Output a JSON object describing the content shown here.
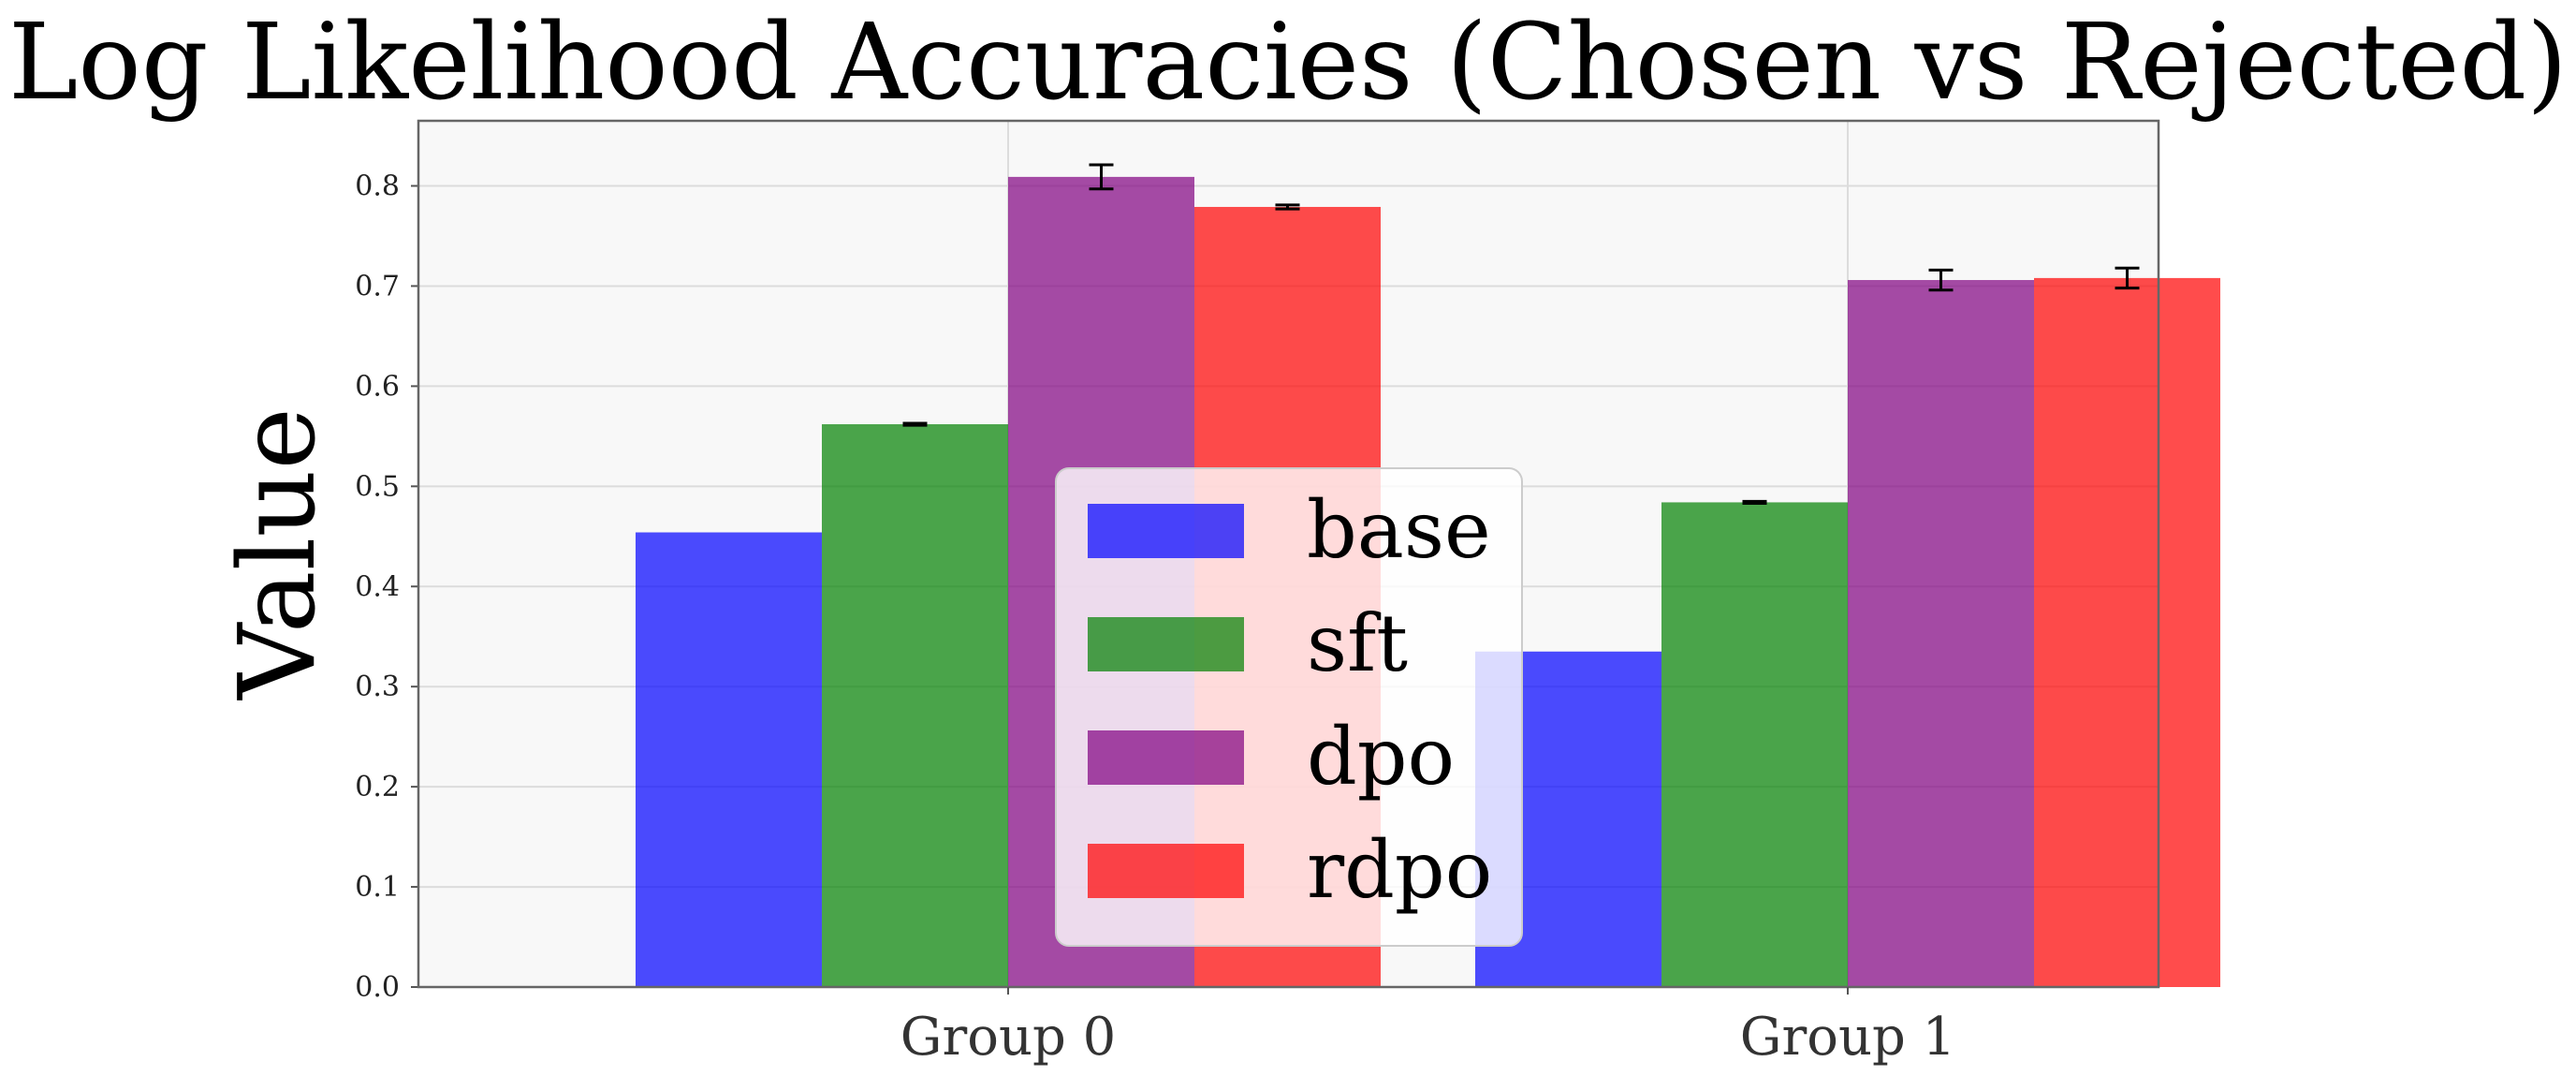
{
  "chart_data": {
    "type": "bar",
    "title": "Log Likelihood Accuracies (Chosen vs Rejected)",
    "xlabel": "",
    "ylabel": "Value",
    "categories": [
      "Group 0",
      "Group 1"
    ],
    "ylim": [
      0,
      0.865
    ],
    "yticks": [
      "0.0",
      "0.1",
      "0.2",
      "0.3",
      "0.4",
      "0.5",
      "0.6",
      "0.7",
      "0.8"
    ],
    "grid": true,
    "legend_position": "lower-center",
    "series": [
      {
        "name": "base",
        "color": "#0000ff",
        "values": [
          0.454,
          0.335
        ],
        "errors": [
          0,
          0
        ]
      },
      {
        "name": "sft",
        "color": "#008000",
        "values": [
          0.562,
          0.484
        ],
        "errors": [
          0.001,
          0.001
        ]
      },
      {
        "name": "dpo",
        "color": "#800080",
        "values": [
          0.809,
          0.706
        ],
        "errors": [
          0.012,
          0.01
        ]
      },
      {
        "name": "rdpo",
        "color": "#ff0000",
        "values": [
          0.779,
          0.708
        ],
        "errors": [
          0.002,
          0.01
        ]
      }
    ]
  }
}
